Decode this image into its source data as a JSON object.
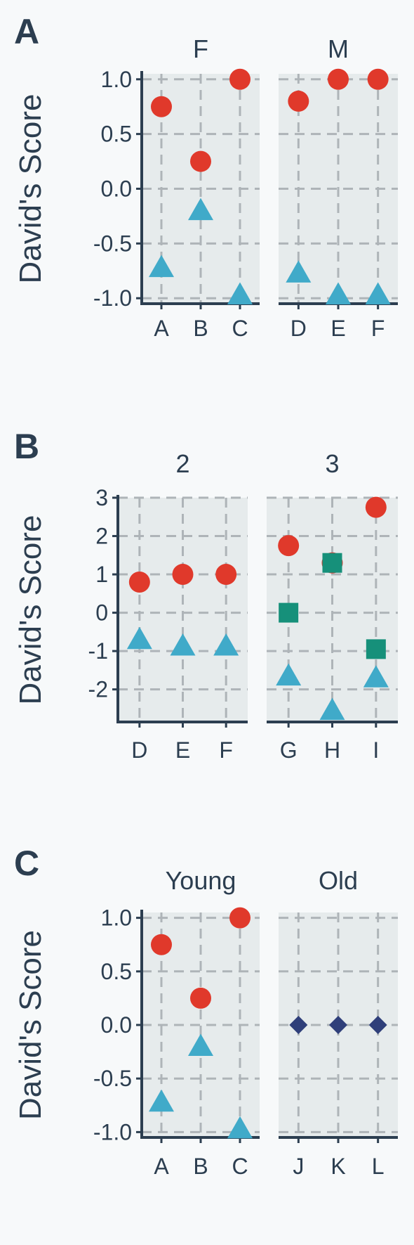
{
  "chart_data": [
    {
      "type": "scatter",
      "panel_label": "A",
      "ylabel": "David's Score",
      "ylim": [
        -1.05,
        1.05
      ],
      "yticks": [
        1.0,
        0.5,
        0.0,
        -0.5,
        -1.0
      ],
      "ytick_labels": [
        "1.0",
        "0.5",
        "0.0",
        "-0.5",
        "-1.0"
      ],
      "grid": true,
      "facets": [
        {
          "title": "F",
          "categories": [
            "A",
            "B",
            "C"
          ],
          "series": [
            {
              "marker": "circle",
              "color": "#e0392b",
              "values": [
                0.75,
                0.25,
                1.0
              ]
            },
            {
              "marker": "triangle",
              "color": "#40aac9",
              "values": [
                -0.72,
                -0.2,
                -0.97
              ]
            }
          ]
        },
        {
          "title": "M",
          "categories": [
            "D",
            "E",
            "F"
          ],
          "series": [
            {
              "marker": "circle",
              "color": "#e0392b",
              "values": [
                0.8,
                1.0,
                1.0
              ]
            },
            {
              "marker": "triangle",
              "color": "#40aac9",
              "values": [
                -0.77,
                -0.97,
                -0.97
              ]
            }
          ]
        }
      ]
    },
    {
      "type": "scatter",
      "panel_label": "B",
      "ylabel": "David's Score",
      "ylim": [
        -2.85,
        3.0
      ],
      "yticks": [
        3,
        2,
        1,
        0,
        -1,
        -2
      ],
      "ytick_labels": [
        "3",
        "2",
        "1",
        "0",
        "-1",
        "-2"
      ],
      "grid": true,
      "facets": [
        {
          "title": "2",
          "categories": [
            "D",
            "E",
            "F"
          ],
          "series": [
            {
              "marker": "circle",
              "color": "#e0392b",
              "values": [
                0.8,
                1.0,
                1.0
              ]
            },
            {
              "marker": "triangle",
              "color": "#40aac9",
              "values": [
                -0.7,
                -0.87,
                -0.87
              ]
            }
          ]
        },
        {
          "title": "3",
          "categories": [
            "G",
            "H",
            "I"
          ],
          "series": [
            {
              "marker": "circle",
              "color": "#e0392b",
              "values": [
                1.75,
                1.3,
                2.75
              ]
            },
            {
              "marker": "triangle",
              "color": "#40aac9",
              "values": [
                -1.65,
                -2.55,
                -1.7
              ]
            },
            {
              "marker": "square",
              "color": "#16907a",
              "values": [
                0.0,
                1.3,
                -0.95
              ]
            }
          ]
        }
      ]
    },
    {
      "type": "scatter",
      "panel_label": "C",
      "ylabel": "David's Score",
      "ylim": [
        -1.05,
        1.05
      ],
      "yticks": [
        1.0,
        0.5,
        0.0,
        -0.5,
        -1.0
      ],
      "ytick_labels": [
        "1.0",
        "0.5",
        "0.0",
        "-0.5",
        "-1.0"
      ],
      "grid": true,
      "facets": [
        {
          "title": "Young",
          "categories": [
            "A",
            "B",
            "C"
          ],
          "series": [
            {
              "marker": "circle",
              "color": "#e0392b",
              "values": [
                0.75,
                0.25,
                1.0
              ]
            },
            {
              "marker": "triangle",
              "color": "#40aac9",
              "values": [
                -0.72,
                -0.2,
                -0.97
              ]
            }
          ]
        },
        {
          "title": "Old",
          "categories": [
            "J",
            "K",
            "L"
          ],
          "series": [
            {
              "marker": "diamond",
              "color": "#2f3f7a",
              "values": [
                0.0,
                0.0,
                0.0
              ]
            }
          ]
        }
      ]
    }
  ]
}
